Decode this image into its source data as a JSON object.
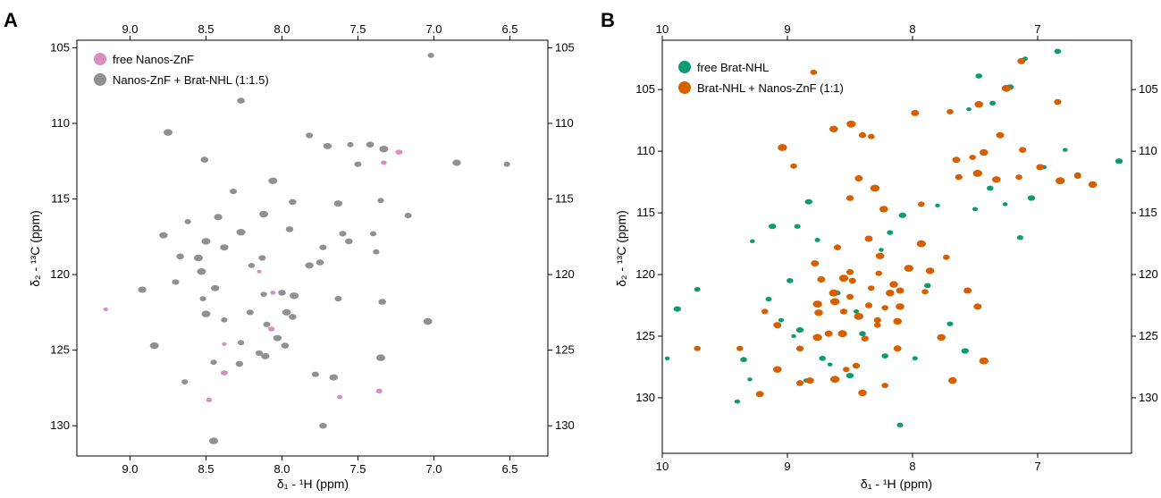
{
  "panels": {
    "A": {
      "panel_label": "A",
      "x_axis_label": "δ₁ - ¹H (ppm)",
      "y_axis_label": "δ₂ - ¹³C (ppm)",
      "legend": [
        "free Nanos-ZnF",
        "Nanos-ZnF + Brat-NHL (1:1.5)"
      ]
    },
    "B": {
      "panel_label": "B",
      "x_axis_label": "δ₁ - ¹H (ppm)",
      "y_axis_label": "δ₂ - ¹³C (ppm)",
      "legend": [
        "free Brat-NHL",
        "Brat-NHL + Nanos-ZnF (1:1)"
      ]
    }
  },
  "chart_data": [
    {
      "type": "scatter",
      "panel": "A",
      "xlabel": "δ₁ - ¹H (ppm)",
      "ylabel": "δ₂ - ¹³C (ppm)",
      "xlim": [
        9.35,
        6.25
      ],
      "ylim": [
        104.5,
        132.0
      ],
      "x_reversed": true,
      "y_reversed": true,
      "xticks": [
        9.0,
        8.5,
        8.0,
        7.5,
        7.0,
        6.5
      ],
      "yticks": [
        105,
        110,
        115,
        120,
        125,
        130
      ],
      "grid": false,
      "legend_position": "top-left",
      "series": [
        {
          "name": "free Nanos-ZnF",
          "color": "#d98ec0",
          "points": [
            [
              9.16,
              122.3
            ],
            [
              8.48,
              128.3
            ],
            [
              8.38,
              126.5
            ],
            [
              7.62,
              128.1
            ],
            [
              7.36,
              127.7
            ],
            [
              8.38,
              124.6
            ],
            [
              7.33,
              112.6
            ],
            [
              7.23,
              111.9
            ],
            [
              8.06,
              121.2
            ],
            [
              8.07,
              123.6
            ],
            [
              8.15,
              119.8
            ]
          ]
        },
        {
          "name": "Nanos-ZnF + Brat-NHL (1:1.5)",
          "color": "#909090",
          "points": [
            [
              7.02,
              105.5
            ],
            [
              8.27,
              108.5
            ],
            [
              8.75,
              110.6
            ],
            [
              7.82,
              110.8
            ],
            [
              7.7,
              111.5
            ],
            [
              7.55,
              111.4
            ],
            [
              7.42,
              111.4
            ],
            [
              7.33,
              111.7
            ],
            [
              7.5,
              112.7
            ],
            [
              6.85,
              112.6
            ],
            [
              6.52,
              112.7
            ],
            [
              8.51,
              112.4
            ],
            [
              8.06,
              113.8
            ],
            [
              8.32,
              114.5
            ],
            [
              7.63,
              115.3
            ],
            [
              7.35,
              115.1
            ],
            [
              7.93,
              115.2
            ],
            [
              8.12,
              116.0
            ],
            [
              7.17,
              116.1
            ],
            [
              8.42,
              116.2
            ],
            [
              8.62,
              116.5
            ],
            [
              7.95,
              117.0
            ],
            [
              8.27,
              117.2
            ],
            [
              7.6,
              117.3
            ],
            [
              8.78,
              117.4
            ],
            [
              7.4,
              117.3
            ],
            [
              7.56,
              117.8
            ],
            [
              8.5,
              117.8
            ],
            [
              7.73,
              118.2
            ],
            [
              8.38,
              118.2
            ],
            [
              7.38,
              118.5
            ],
            [
              8.67,
              118.8
            ],
            [
              8.55,
              118.9
            ],
            [
              8.13,
              118.9
            ],
            [
              7.82,
              119.4
            ],
            [
              8.2,
              119.4
            ],
            [
              7.75,
              119.2
            ],
            [
              8.53,
              119.8
            ],
            [
              8.7,
              120.5
            ],
            [
              8.44,
              120.9
            ],
            [
              8.12,
              121.3
            ],
            [
              8.0,
              121.2
            ],
            [
              7.92,
              121.4
            ],
            [
              7.63,
              121.6
            ],
            [
              8.92,
              121.0
            ],
            [
              8.52,
              121.6
            ],
            [
              7.34,
              121.8
            ],
            [
              8.5,
              122.6
            ],
            [
              8.21,
              122.5
            ],
            [
              7.97,
              122.5
            ],
            [
              8.38,
              123.0
            ],
            [
              7.93,
              122.8
            ],
            [
              7.04,
              123.1
            ],
            [
              8.1,
              123.3
            ],
            [
              8.03,
              124.2
            ],
            [
              8.27,
              124.5
            ],
            [
              7.98,
              124.7
            ],
            [
              8.84,
              124.7
            ],
            [
              8.15,
              125.2
            ],
            [
              8.11,
              125.4
            ],
            [
              8.45,
              125.8
            ],
            [
              8.28,
              125.9
            ],
            [
              7.35,
              125.5
            ],
            [
              7.78,
              126.6
            ],
            [
              7.66,
              126.8
            ],
            [
              8.64,
              127.1
            ],
            [
              7.73,
              130.0
            ],
            [
              8.45,
              131.0
            ]
          ]
        }
      ]
    },
    {
      "type": "scatter",
      "panel": "B",
      "xlabel": "δ₁ - ¹H (ppm)",
      "ylabel": "δ₂ - ¹³C (ppm)",
      "xlim": [
        10.0,
        6.25
      ],
      "ylim": [
        101.0,
        134.5
      ],
      "x_reversed": true,
      "y_reversed": true,
      "xticks": [
        10,
        9,
        8,
        7
      ],
      "yticks": [
        105,
        110,
        115,
        120,
        125,
        130
      ],
      "grid": false,
      "legend_position": "top-left",
      "series": [
        {
          "name": "free Brat-NHL",
          "color": "#0f9b72",
          "points": [
            [
              9.96,
              126.8
            ],
            [
              9.72,
              121.2
            ],
            [
              9.88,
              122.8
            ],
            [
              9.4,
              130.3
            ],
            [
              9.35,
              126.9
            ],
            [
              9.28,
              117.3
            ],
            [
              9.15,
              122.0
            ],
            [
              9.12,
              116.1
            ],
            [
              9.05,
              123.7
            ],
            [
              8.98,
              120.5
            ],
            [
              8.95,
              125.0
            ],
            [
              8.92,
              116.1
            ],
            [
              8.83,
              114.1
            ],
            [
              8.76,
              117.2
            ],
            [
              8.72,
              126.8
            ],
            [
              8.66,
              127.3
            ],
            [
              8.6,
              121.5
            ],
            [
              8.5,
              128.2
            ],
            [
              8.45,
              123.0
            ],
            [
              8.4,
              124.8
            ],
            [
              8.25,
              118.0
            ],
            [
              8.18,
              116.6
            ],
            [
              8.08,
              115.2
            ],
            [
              7.98,
              126.8
            ],
            [
              7.88,
              120.9
            ],
            [
              7.8,
              114.4
            ],
            [
              7.7,
              124.0
            ],
            [
              7.58,
              126.2
            ],
            [
              7.5,
              114.7
            ],
            [
              7.38,
              113.0
            ],
            [
              7.26,
              114.3
            ],
            [
              7.14,
              117.0
            ],
            [
              7.05,
              113.8
            ],
            [
              6.95,
              111.3
            ],
            [
              6.84,
              101.9
            ],
            [
              6.78,
              109.9
            ],
            [
              6.68,
              111.9
            ],
            [
              6.35,
              110.8
            ],
            [
              7.1,
              102.5
            ],
            [
              7.47,
              103.9
            ],
            [
              7.55,
              106.6
            ],
            [
              7.36,
              106.1
            ],
            [
              7.22,
              104.8
            ],
            [
              8.85,
              128.6
            ],
            [
              8.22,
              126.6
            ],
            [
              9.3,
              128.5
            ],
            [
              8.1,
              132.2
            ],
            [
              8.9,
              124.5
            ]
          ]
        },
        {
          "name": "Brat-NHL + Nanos-ZnF (1:1)",
          "color": "#d65f00",
          "points": [
            [
              8.79,
              103.6
            ],
            [
              7.13,
              102.7
            ],
            [
              7.25,
              104.9
            ],
            [
              6.84,
              106.0
            ],
            [
              7.47,
              106.2
            ],
            [
              7.7,
              106.8
            ],
            [
              7.98,
              106.9
            ],
            [
              8.49,
              107.8
            ],
            [
              8.4,
              108.7
            ],
            [
              8.63,
              108.2
            ],
            [
              8.33,
              108.8
            ],
            [
              7.3,
              108.7
            ],
            [
              9.04,
              109.7
            ],
            [
              7.12,
              109.9
            ],
            [
              7.43,
              110.1
            ],
            [
              7.52,
              110.5
            ],
            [
              7.65,
              110.7
            ],
            [
              7.48,
              111.8
            ],
            [
              7.63,
              112.1
            ],
            [
              7.33,
              112.3
            ],
            [
              7.15,
              112.1
            ],
            [
              6.98,
              111.3
            ],
            [
              6.82,
              112.4
            ],
            [
              6.68,
              112.0
            ],
            [
              6.56,
              112.7
            ],
            [
              8.95,
              111.2
            ],
            [
              8.43,
              112.2
            ],
            [
              8.3,
              113.0
            ],
            [
              8.5,
              113.8
            ],
            [
              8.23,
              114.7
            ],
            [
              7.93,
              114.3
            ],
            [
              8.35,
              117.1
            ],
            [
              7.93,
              117.5
            ],
            [
              8.6,
              117.8
            ],
            [
              8.26,
              118.5
            ],
            [
              7.73,
              118.6
            ],
            [
              8.78,
              119.1
            ],
            [
              8.03,
              119.5
            ],
            [
              8.5,
              119.8
            ],
            [
              7.86,
              119.7
            ],
            [
              8.27,
              119.9
            ],
            [
              8.73,
              120.4
            ],
            [
              8.55,
              120.3
            ],
            [
              8.48,
              120.5
            ],
            [
              8.15,
              120.8
            ],
            [
              8.33,
              121.1
            ],
            [
              8.1,
              121.3
            ],
            [
              8.63,
              121.5
            ],
            [
              8.5,
              121.8
            ],
            [
              8.18,
              121.5
            ],
            [
              7.9,
              121.4
            ],
            [
              7.56,
              121.3
            ],
            [
              8.76,
              122.4
            ],
            [
              8.35,
              122.5
            ],
            [
              8.1,
              122.6
            ],
            [
              8.22,
              122.7
            ],
            [
              7.48,
              122.6
            ],
            [
              8.62,
              122.2
            ],
            [
              8.55,
              123.0
            ],
            [
              8.75,
              123.1
            ],
            [
              9.18,
              123.0
            ],
            [
              9.08,
              124.1
            ],
            [
              8.43,
              123.4
            ],
            [
              8.28,
              123.7
            ],
            [
              8.12,
              123.8
            ],
            [
              8.28,
              124.1
            ],
            [
              8.67,
              124.8
            ],
            [
              8.56,
              124.8
            ],
            [
              8.38,
              125.2
            ],
            [
              7.77,
              125.1
            ],
            [
              9.38,
              126.0
            ],
            [
              8.12,
              126.0
            ],
            [
              8.76,
              125.1
            ],
            [
              8.9,
              126.0
            ],
            [
              9.08,
              127.7
            ],
            [
              8.53,
              127.7
            ],
            [
              8.82,
              128.6
            ],
            [
              8.62,
              128.5
            ],
            [
              8.9,
              128.8
            ],
            [
              8.4,
              129.6
            ],
            [
              8.22,
              129.0
            ],
            [
              9.22,
              129.7
            ],
            [
              7.43,
              127.0
            ],
            [
              8.45,
              127.4
            ],
            [
              7.68,
              128.6
            ],
            [
              9.72,
              126.0
            ]
          ]
        }
      ]
    }
  ]
}
